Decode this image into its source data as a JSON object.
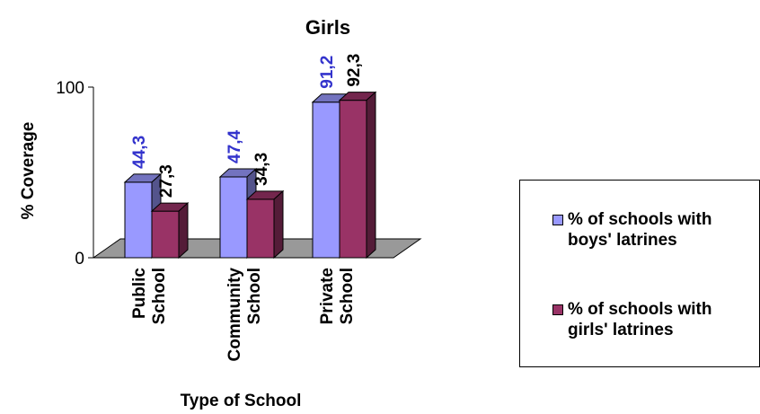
{
  "chart_data": {
    "type": "bar",
    "title": "Girls",
    "xlabel": "Type of School",
    "ylabel": "% Coverage",
    "categories": [
      "Public\nSchool",
      "Community\nSchool",
      "Private\nSchool"
    ],
    "ylim": [
      0,
      100
    ],
    "yticks": [
      "0",
      "100"
    ],
    "series": [
      {
        "name": "% of schools with boys' latrines",
        "values": [
          44.3,
          47.4,
          91.2
        ],
        "labels": [
          "44,3",
          "47,4",
          "91,2"
        ],
        "color": "#9999ff",
        "label_color": "#3333cc"
      },
      {
        "name": "% of schools with girls' latrines",
        "values": [
          27.3,
          34.3,
          92.3
        ],
        "labels": [
          "27,3",
          "34,3",
          "92,3"
        ],
        "color": "#993366",
        "label_color": "#000000"
      }
    ],
    "grid": false,
    "legend_position": "right"
  }
}
